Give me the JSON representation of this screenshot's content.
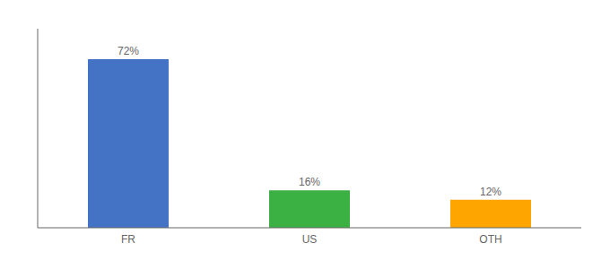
{
  "chart_data": {
    "type": "bar",
    "categories": [
      "FR",
      "US",
      "OTH"
    ],
    "values": [
      72,
      16,
      12
    ],
    "value_labels": [
      "72%",
      "16%",
      "12%"
    ],
    "colors": [
      "#4472C4",
      "#3BB143",
      "#FFA500"
    ],
    "ylim": [
      0,
      85
    ],
    "data_labels": true,
    "tick_labels": "x",
    "grid": false
  }
}
